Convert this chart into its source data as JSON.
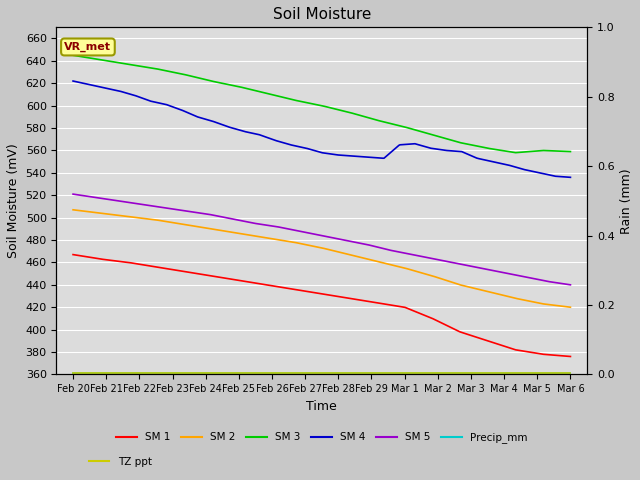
{
  "title": "Soil Moisture",
  "xlabel": "Time",
  "ylabel_left": "Soil Moisture (mV)",
  "ylabel_right": "Rain (mm)",
  "ylim_left": [
    360,
    670
  ],
  "ylim_right": [
    0.0,
    1.0
  ],
  "fig_bg_color": "#c8c8c8",
  "plot_bg_color": "#dcdcdc",
  "annotation_text": "VR_met",
  "annotation_bg": "#ffff99",
  "annotation_border": "#999900",
  "annotation_text_color": "#8B0000",
  "x_tick_labels": [
    "Feb 20",
    "Feb 21",
    "Feb 22",
    "Feb 23",
    "Feb 24",
    "Feb 25",
    "Feb 26",
    "Feb 27",
    "Feb 28",
    "Feb 29",
    "Mar 1",
    "Mar 2",
    "Mar 3",
    "Mar 4",
    "Mar 5",
    "Mar 6"
  ],
  "yticks": [
    360,
    380,
    400,
    420,
    440,
    460,
    480,
    500,
    520,
    540,
    560,
    580,
    600,
    620,
    640,
    660
  ],
  "right_yticks": [
    0.0,
    0.2,
    0.4,
    0.6,
    0.8,
    1.0
  ],
  "sm1_color": "#ff0000",
  "sm2_color": "#ffa500",
  "sm3_color": "#00cc00",
  "sm4_color": "#0000cc",
  "sm5_color": "#9900cc",
  "precip_color": "#00cccc",
  "tz_color": "#cccc00",
  "sm1_values": [
    467,
    463,
    460,
    456,
    452,
    448,
    444,
    440,
    436,
    432,
    428,
    424,
    420,
    410,
    398,
    390,
    382,
    378,
    376
  ],
  "sm2_values": [
    507,
    504,
    501,
    498,
    494,
    490,
    486,
    482,
    478,
    473,
    467,
    461,
    455,
    448,
    440,
    434,
    428,
    423,
    420
  ],
  "sm3_values": [
    645,
    641,
    637,
    633,
    628,
    622,
    617,
    611,
    605,
    600,
    594,
    587,
    581,
    574,
    567,
    562,
    558,
    560,
    559
  ],
  "sm4_values": [
    622,
    619,
    616,
    613,
    609,
    604,
    601,
    596,
    590,
    586,
    581,
    577,
    574,
    569,
    565,
    562,
    558,
    556,
    555,
    554,
    553,
    565,
    566,
    562,
    560,
    559,
    553,
    550,
    547,
    543,
    540,
    537,
    536
  ],
  "sm5_values": [
    521,
    518,
    515,
    512,
    509,
    506,
    503,
    499,
    495,
    492,
    488,
    484,
    480,
    476,
    471,
    467,
    463,
    459,
    455,
    451,
    447,
    443,
    440
  ],
  "legend_row1": [
    {
      "label": "SM 1",
      "color": "#ff0000"
    },
    {
      "label": "SM 2",
      "color": "#ffa500"
    },
    {
      "label": "SM 3",
      "color": "#00cc00"
    },
    {
      "label": "SM 4",
      "color": "#0000cc"
    },
    {
      "label": "SM 5",
      "color": "#9900cc"
    },
    {
      "label": "Precip_mm",
      "color": "#00cccc"
    }
  ],
  "legend_row2": [
    {
      "label": "TZ ppt",
      "color": "#cccc00"
    }
  ]
}
